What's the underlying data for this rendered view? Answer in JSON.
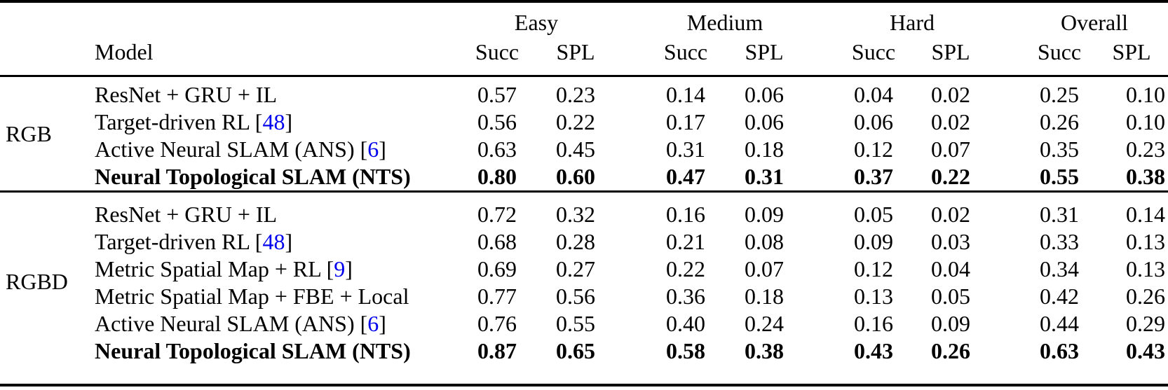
{
  "table": {
    "group_columns": [
      "Easy",
      "Medium",
      "Hard",
      "Overall"
    ],
    "subheaders": {
      "model": "Model",
      "succ": "Succ",
      "spl": "SPL"
    },
    "citation_brackets": {
      "open": " [",
      "close": "]"
    },
    "colors": {
      "citation_link": "#0000EE",
      "text": "#000000",
      "rule": "#000000"
    },
    "sections": [
      {
        "group": "RGB",
        "rows": [
          {
            "name": "ResNet + GRU + IL",
            "cite": null,
            "bold": false,
            "values": [
              "0.57",
              "0.23",
              "0.14",
              "0.06",
              "0.04",
              "0.02",
              "0.25",
              "0.10"
            ]
          },
          {
            "name": "Target-driven RL",
            "cite": "48",
            "bold": false,
            "values": [
              "0.56",
              "0.22",
              "0.17",
              "0.06",
              "0.06",
              "0.02",
              "0.26",
              "0.10"
            ]
          },
          {
            "name": "Active Neural SLAM (ANS)",
            "cite": "6",
            "bold": false,
            "values": [
              "0.63",
              "0.45",
              "0.31",
              "0.18",
              "0.12",
              "0.07",
              "0.35",
              "0.23"
            ]
          },
          {
            "name": "Neural Topological SLAM (NTS)",
            "cite": null,
            "bold": true,
            "values": [
              "0.80",
              "0.60",
              "0.47",
              "0.31",
              "0.37",
              "0.22",
              "0.55",
              "0.38"
            ]
          }
        ]
      },
      {
        "group": "RGBD",
        "rows": [
          {
            "name": "ResNet + GRU + IL",
            "cite": null,
            "bold": false,
            "values": [
              "0.72",
              "0.32",
              "0.16",
              "0.09",
              "0.05",
              "0.02",
              "0.31",
              "0.14"
            ]
          },
          {
            "name": "Target-driven RL",
            "cite": "48",
            "bold": false,
            "values": [
              "0.68",
              "0.28",
              "0.21",
              "0.08",
              "0.09",
              "0.03",
              "0.33",
              "0.13"
            ]
          },
          {
            "name": "Metric Spatial Map + RL",
            "cite": "9",
            "bold": false,
            "values": [
              "0.69",
              "0.27",
              "0.22",
              "0.07",
              "0.12",
              "0.04",
              "0.34",
              "0.13"
            ]
          },
          {
            "name": "Metric Spatial Map + FBE + Local",
            "cite": null,
            "bold": false,
            "values": [
              "0.77",
              "0.56",
              "0.36",
              "0.18",
              "0.13",
              "0.05",
              "0.42",
              "0.26"
            ]
          },
          {
            "name": "Active Neural SLAM (ANS)",
            "cite": "6",
            "bold": false,
            "values": [
              "0.76",
              "0.55",
              "0.40",
              "0.24",
              "0.16",
              "0.09",
              "0.44",
              "0.29"
            ]
          },
          {
            "name": "Neural Topological SLAM (NTS)",
            "cite": null,
            "bold": true,
            "values": [
              "0.87",
              "0.65",
              "0.58",
              "0.38",
              "0.43",
              "0.26",
              "0.63",
              "0.43"
            ]
          }
        ]
      }
    ]
  }
}
